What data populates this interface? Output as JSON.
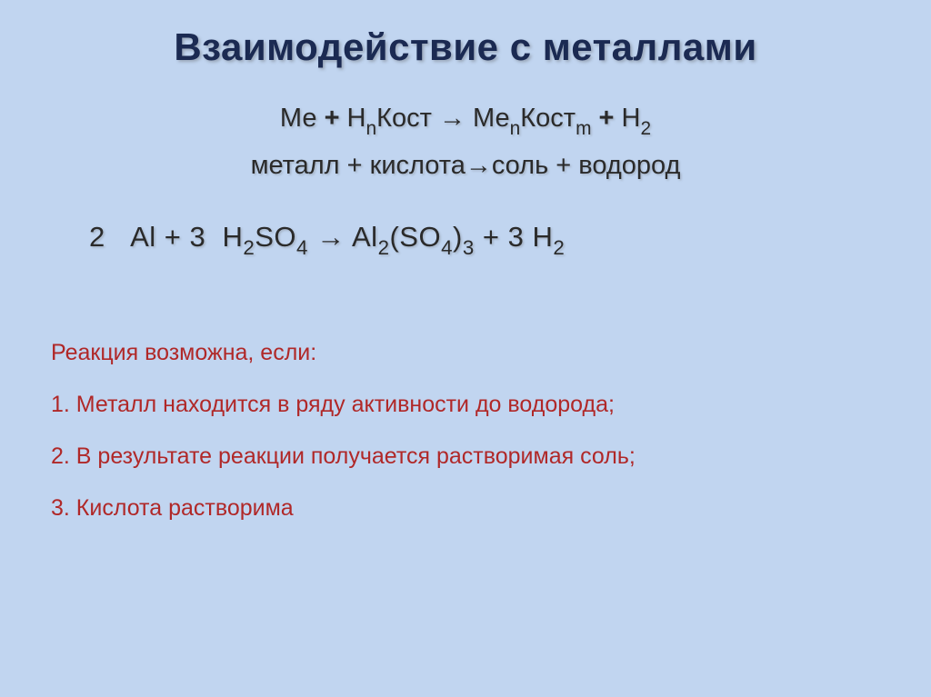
{
  "colors": {
    "background": "#c1d5f0",
    "title": "#1b2a52",
    "body_text": "#2a2a2a",
    "condition_text": "#b02828"
  },
  "title": "Взаимодействие с металлами",
  "formula_generic_html": "Ме <span class='plus'>+</span> Н<sub>n</sub>Кост → Ме<sub>n</sub>Кост<sub>m</sub> <span class='plus'>+</span> Н<sub>2</sub>",
  "formula_word": "металл + кислота→соль + водород",
  "equation_html": "2&nbsp;&nbsp;&nbsp;Al + 3&nbsp;&nbsp;H<sub>2</sub>SO<sub>4</sub> → Al<sub>2</sub>(SO<sub>4</sub>)<sub>3</sub> + 3 H<sub>2</sub>",
  "conditions": {
    "heading": "Реакция возможна, если:",
    "items": [
      "1. Металл находится в ряду активности до водорода;",
      "2. В результате реакции получается растворимая соль;",
      "3. Кислота растворима"
    ]
  }
}
